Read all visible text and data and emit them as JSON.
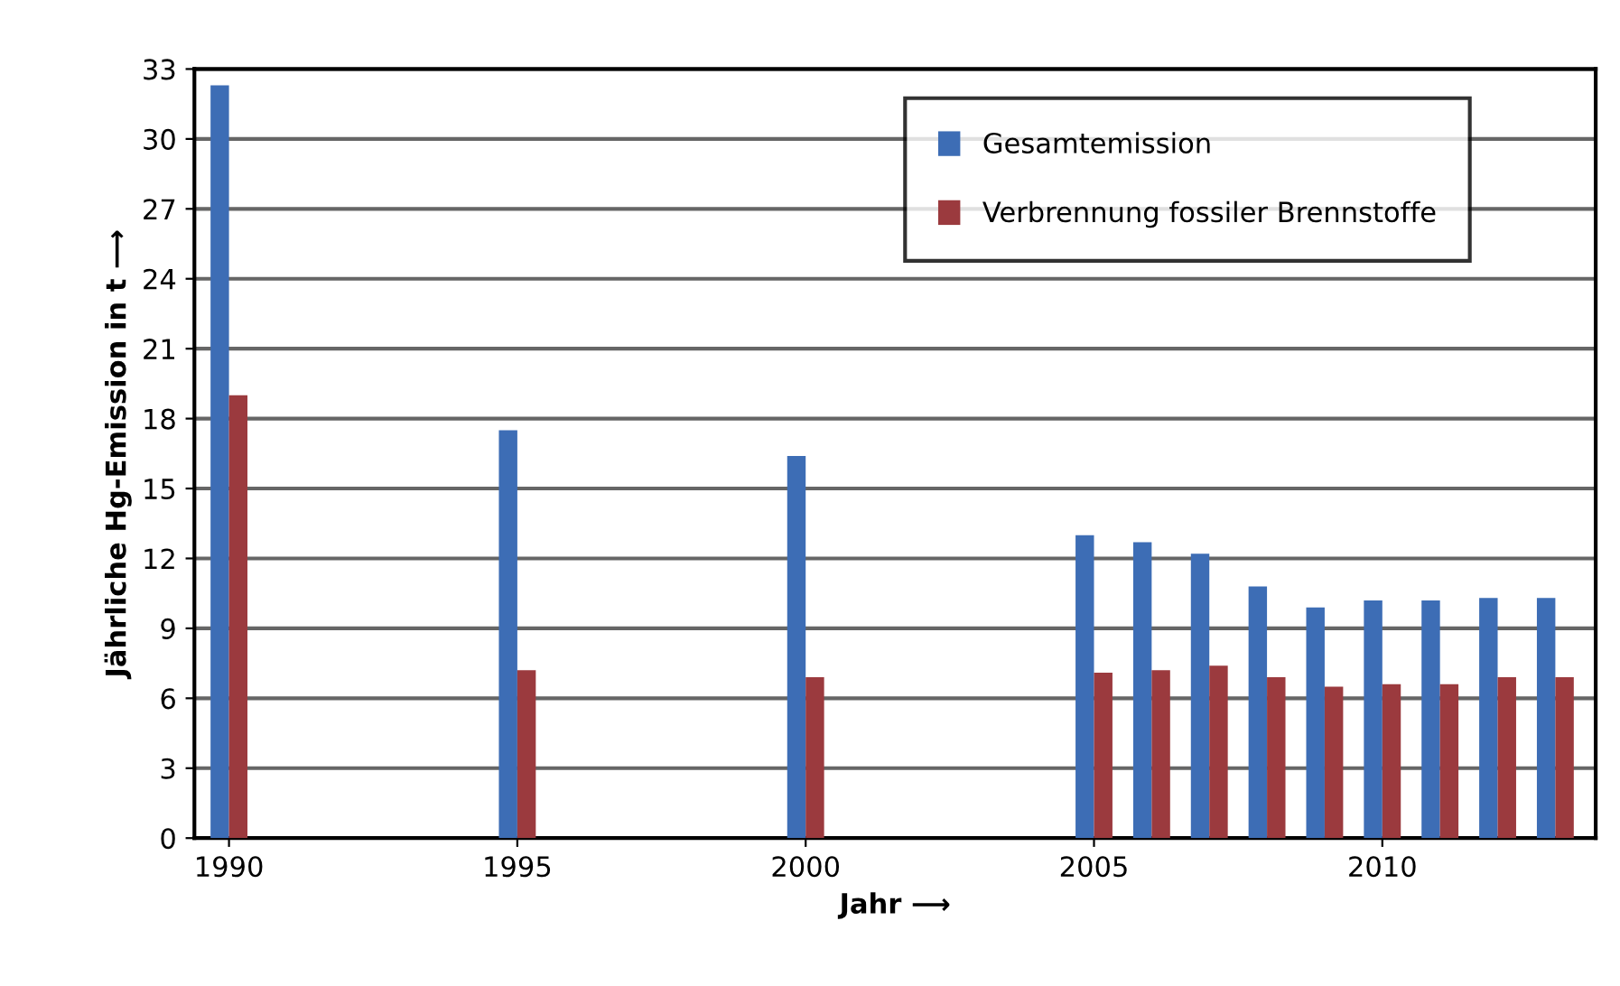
{
  "chart_data": {
    "type": "bar",
    "xlabel": "Jahr ⟶",
    "ylabel": "Jährliche Hg-Emission in t ⟶",
    "x": [
      1990,
      1995,
      2000,
      2005,
      2006,
      2007,
      2008,
      2009,
      2010,
      2011,
      2012,
      2013
    ],
    "series": [
      {
        "name": "Gesamtemission",
        "color": "#3d6db5",
        "values": [
          32.3,
          17.5,
          16.4,
          13.0,
          12.7,
          12.2,
          10.8,
          9.9,
          10.2,
          10.2,
          10.3,
          10.3
        ]
      },
      {
        "name": "Verbrennung fossiler Brennstoffe",
        "color": "#9b3a3e",
        "values": [
          19.0,
          7.2,
          6.9,
          7.1,
          7.2,
          7.4,
          6.9,
          6.5,
          6.6,
          6.6,
          6.9,
          6.9
        ]
      }
    ],
    "xlim": [
      1989.4,
      2013.7
    ],
    "xticks": [
      1990,
      1995,
      2000,
      2005,
      2010
    ],
    "ylim": [
      0,
      33
    ],
    "yticks": [
      0,
      3,
      6,
      9,
      12,
      15,
      18,
      21,
      24,
      27,
      30,
      33
    ],
    "grid": "y",
    "legend": "top right"
  }
}
